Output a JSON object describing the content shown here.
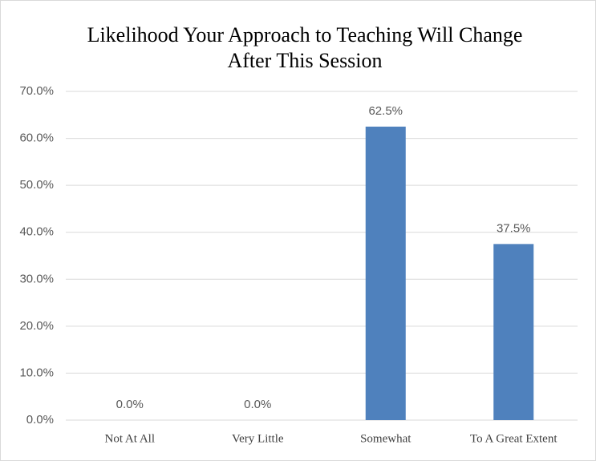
{
  "chart_data": {
    "type": "bar",
    "title": "Likelihood Your Approach to Teaching Will Change After This Session",
    "categories": [
      "Not At All",
      "Very Little",
      "Somewhat",
      "To A Great Extent"
    ],
    "values": [
      0,
      0,
      62.5,
      37.5
    ],
    "value_labels": [
      "0.0%",
      "0.0%",
      "62.5%",
      "37.5%"
    ],
    "color": "#4f81bd",
    "ylim": [
      0,
      70
    ],
    "yticks": [
      {
        "value": 0,
        "label": "0.0%"
      },
      {
        "value": 10,
        "label": "10.0%"
      },
      {
        "value": 20,
        "label": "20.0%"
      },
      {
        "value": 30,
        "label": "30.0%"
      },
      {
        "value": 40,
        "label": "40.0%"
      },
      {
        "value": 50,
        "label": "50.0%"
      },
      {
        "value": 60,
        "label": "60.0%"
      },
      {
        "value": 70,
        "label": "70.0%"
      }
    ],
    "grid": true
  }
}
